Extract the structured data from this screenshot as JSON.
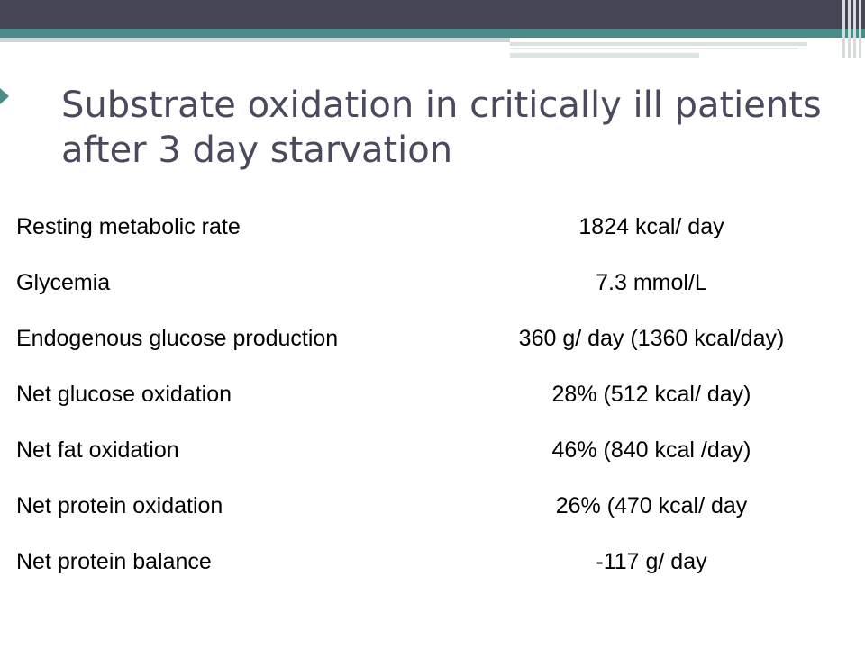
{
  "slide": {
    "title": "Substrate oxidation in critically ill patients after 3 day starvation",
    "accent_color": "#4a8c8a",
    "header_color": "#454553",
    "rows": [
      {
        "label": "Resting metabolic rate",
        "value": "1824 kcal/ day"
      },
      {
        "label": "Glycemia",
        "value": "7.3 mmol/L"
      },
      {
        "label": "Endogenous glucose production",
        "value": "360 g/ day (1360 kcal/day)"
      },
      {
        "label": "Net glucose oxidation",
        "value": "28% (512 kcal/ day)"
      },
      {
        "label": "Net fat oxidation",
        "value": "46% (840 kcal /day)"
      },
      {
        "label": "Net protein oxidation",
        "value": "26% (470 kcal/ day"
      },
      {
        "label": "Net protein balance",
        "value": "-117 g/ day"
      }
    ]
  }
}
